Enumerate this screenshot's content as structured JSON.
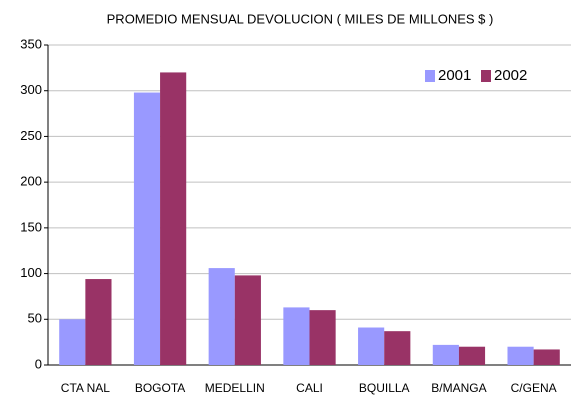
{
  "chart_data": {
    "type": "bar",
    "title": "PROMEDIO MENSUAL DEVOLUCION ( MILES DE MILLONES $ )",
    "categories": [
      "CTA NAL",
      "BOGOTA",
      "MEDELLIN",
      "CALI",
      "BQUILLA",
      "B/MANGA",
      "C/GENA"
    ],
    "series": [
      {
        "name": "2001",
        "color": "#9999ff",
        "values": [
          50,
          298,
          106,
          63,
          41,
          22,
          20
        ]
      },
      {
        "name": "2002",
        "color": "#993366",
        "values": [
          94,
          320,
          98,
          60,
          37,
          20,
          17
        ]
      }
    ],
    "ylim": [
      0,
      350
    ],
    "yticks": [
      0,
      50,
      100,
      150,
      200,
      250,
      300,
      350
    ],
    "grid": true,
    "legend": "upper right"
  }
}
